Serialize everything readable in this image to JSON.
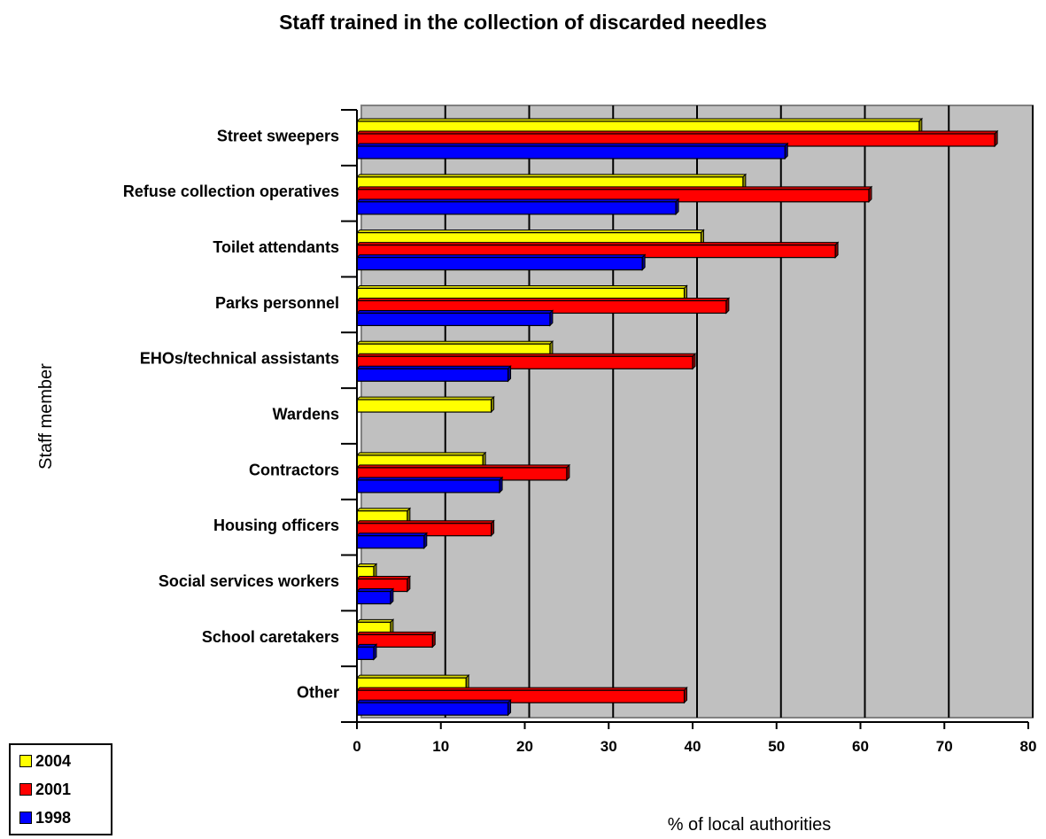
{
  "chart_data": {
    "type": "bar",
    "orientation": "horizontal",
    "title": "Staff trained in the collection of discarded needles",
    "xlabel": "% of local authorities",
    "ylabel": "Staff member",
    "xlim": [
      0,
      80
    ],
    "x_ticks": [
      "0",
      "10",
      "20",
      "30",
      "40",
      "50",
      "60",
      "70",
      "80"
    ],
    "grid": "vertical",
    "legend_position": "bottom-left",
    "categories": [
      "Street sweepers",
      "Refuse collection operatives",
      "Toilet attendants",
      "Parks personnel",
      "EHOs/technical assistants",
      "Wardens",
      "Contractors",
      "Housing officers",
      "Social services workers",
      "School caretakers",
      "Other"
    ],
    "series": [
      {
        "name": "2004",
        "color": "#FFFF00",
        "values": [
          67,
          46,
          41,
          39,
          23,
          16,
          15,
          6,
          2,
          4,
          13
        ]
      },
      {
        "name": "2001",
        "color": "#FF0000",
        "values": [
          76,
          61,
          57,
          44,
          40,
          null,
          25,
          16,
          6,
          9,
          39
        ]
      },
      {
        "name": "1998",
        "color": "#0000FF",
        "values": [
          51,
          38,
          34,
          23,
          18,
          null,
          17,
          8,
          4,
          2,
          18
        ]
      }
    ],
    "plot_background": "#C0C0C0"
  }
}
